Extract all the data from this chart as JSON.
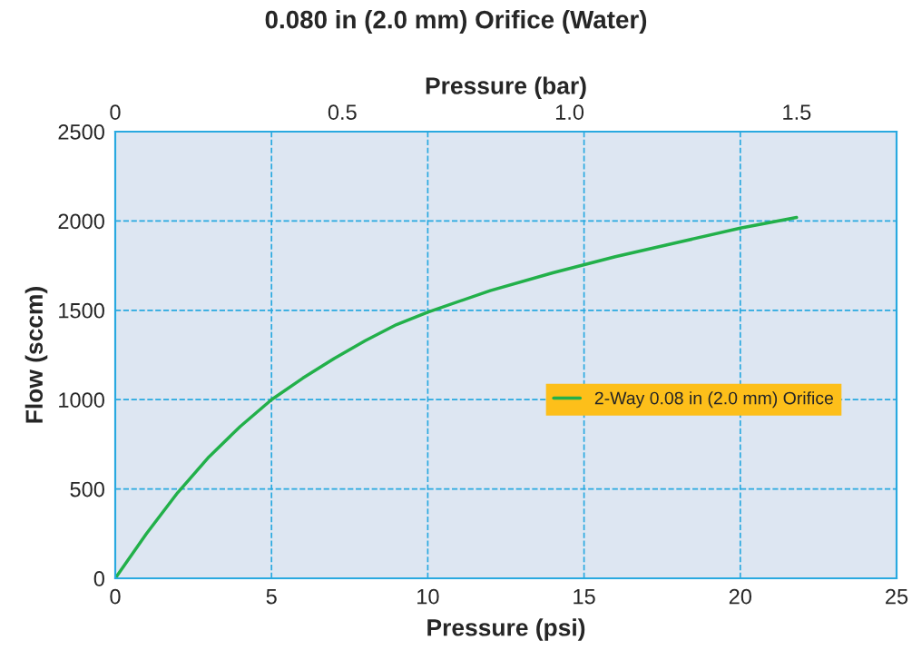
{
  "chart_data": {
    "type": "line",
    "title": "0.080 in (2.0 mm) Orifice (Water)",
    "xlabel": "Pressure (psi)",
    "ylabel": "Flow (sccm)",
    "x2label": "Pressure (bar)",
    "series": [
      {
        "name": "2-Way 0.08 in (2.0 mm) Orifice",
        "color": "#22b04a",
        "x": [
          0,
          1,
          2,
          3,
          4,
          5,
          6,
          7,
          8,
          9,
          10,
          12,
          14,
          16,
          18,
          20,
          21.8
        ],
        "values": [
          0,
          250,
          480,
          680,
          850,
          1000,
          1120,
          1230,
          1330,
          1420,
          1490,
          1610,
          1710,
          1800,
          1880,
          1960,
          2020
        ]
      }
    ],
    "xlim": [
      0,
      25
    ],
    "xticks": [
      0,
      5,
      10,
      15,
      20,
      25
    ],
    "ylim": [
      0,
      2500
    ],
    "yticks": [
      0,
      500,
      1000,
      1500,
      2000,
      2500
    ],
    "x2lim": [
      0,
      1.72
    ],
    "x2ticks": [
      0,
      {
        "value": 0.5,
        "label": "0.5"
      },
      {
        "value": 1.0,
        "label": "1.0"
      },
      {
        "value": 1.5,
        "label": "1.5"
      }
    ],
    "grid": true,
    "legend": "right",
    "line_style": "solid",
    "marker": "none"
  }
}
